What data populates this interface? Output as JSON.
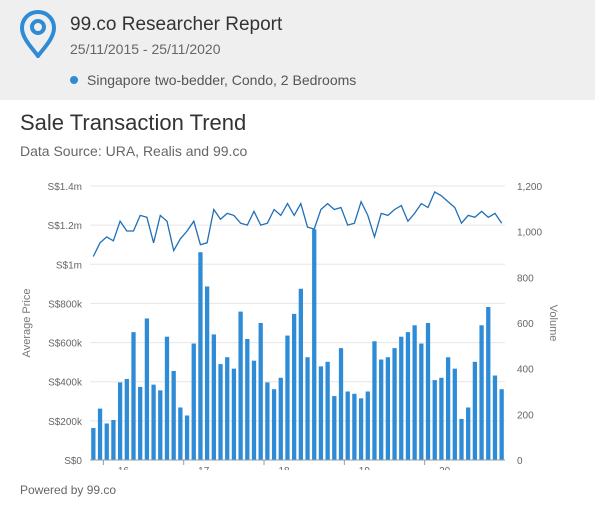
{
  "header": {
    "title": "99.co Researcher Report",
    "date_range": "25/11/2015 - 25/11/2020",
    "series_label": "Singapore two-bedder, Condo, 2 Bedrooms",
    "accent_color": "#2e8bd6",
    "logo_icon": "map-pin-icon"
  },
  "chart_title": "Sale Transaction Trend",
  "chart_subtitle": "Data Source: URA, Realis and 99.co",
  "footer": {
    "powered_by": "Powered by 99.co"
  },
  "chart_data": {
    "type": "bar",
    "title": "Sale Transaction Trend",
    "ylabel": "Average Price",
    "y2label": "Volume",
    "y_ticks": [
      "S$0",
      "S$200k",
      "S$400k",
      "S$600k",
      "S$800k",
      "S$1m",
      "S$1.2m",
      "S$1.4m"
    ],
    "y2_ticks": [
      "0",
      "200",
      "400",
      "600",
      "800",
      "1,000",
      "1,200"
    ],
    "x_ticks": [
      "16",
      "17",
      "18",
      "19",
      "20"
    ],
    "ylim": [
      0,
      1400000
    ],
    "y2lim": [
      0,
      1200
    ],
    "grid": true,
    "x_start": "2015-11",
    "series": [
      {
        "name": "Volume",
        "kind": "bar",
        "axis": "right",
        "color": "#2e8bd6",
        "values": [
          140,
          225,
          160,
          175,
          340,
          355,
          560,
          320,
          620,
          330,
          305,
          540,
          390,
          230,
          195,
          510,
          910,
          760,
          550,
          420,
          450,
          400,
          650,
          530,
          435,
          600,
          340,
          310,
          360,
          545,
          640,
          750,
          450,
          1010,
          410,
          430,
          280,
          490,
          300,
          290,
          270,
          300,
          520,
          440,
          450,
          490,
          540,
          560,
          590,
          510,
          600,
          350,
          360,
          450,
          400,
          180,
          230,
          430,
          590,
          670,
          370,
          310
        ]
      },
      {
        "name": "Average Price",
        "kind": "line",
        "axis": "left",
        "color": "#1f6fb8",
        "values": [
          1040000,
          1110000,
          1140000,
          1120000,
          1220000,
          1170000,
          1170000,
          1250000,
          1240000,
          1110000,
          1250000,
          1220000,
          1070000,
          1130000,
          1170000,
          1220000,
          1100000,
          1110000,
          1280000,
          1230000,
          1260000,
          1250000,
          1210000,
          1200000,
          1270000,
          1200000,
          1210000,
          1280000,
          1250000,
          1310000,
          1250000,
          1310000,
          1190000,
          1180000,
          1280000,
          1310000,
          1280000,
          1290000,
          1200000,
          1210000,
          1320000,
          1250000,
          1140000,
          1260000,
          1250000,
          1280000,
          1300000,
          1220000,
          1260000,
          1310000,
          1290000,
          1370000,
          1350000,
          1320000,
          1290000,
          1210000,
          1250000,
          1240000,
          1270000,
          1240000,
          1260000,
          1210000
        ]
      }
    ]
  }
}
